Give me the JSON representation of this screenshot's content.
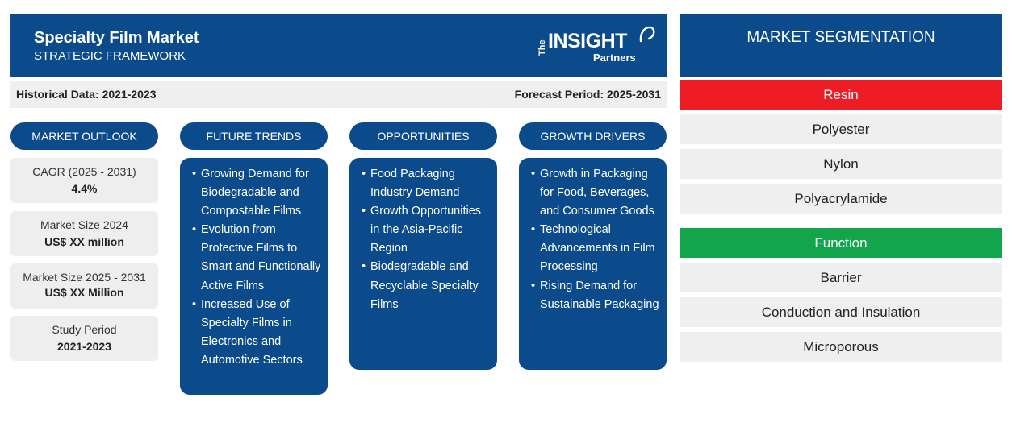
{
  "header": {
    "title": "Specialty Film Market",
    "subtitle": "STRATEGIC FRAMEWORK",
    "logo": {
      "the": "The",
      "insight": "INSIGHT",
      "partners": "Partners"
    }
  },
  "periods": {
    "historical": "Historical Data: 2021-2023",
    "forecast": "Forecast Period: 2025-2031"
  },
  "columns": {
    "outlook": "MARKET OUTLOOK",
    "trends": "FUTURE TRENDS",
    "opportunities": "OPPORTUNITIES",
    "drivers": "GROWTH DRIVERS"
  },
  "outlook": [
    {
      "label": "CAGR (2025 - 2031)",
      "value": "4.4%"
    },
    {
      "label": "Market Size 2024",
      "value": "US$ XX million"
    },
    {
      "label": "Market Size 2025 - 2031",
      "value": "US$ XX Million"
    },
    {
      "label": "Study Period",
      "value": "2021-2023"
    }
  ],
  "trends": [
    "Growing Demand for Biodegradable and Compostable Films",
    "Evolution from Protective Films to Smart and Functionally Active Films",
    "Increased Use of Specialty Films in Electronics and Automotive Sectors"
  ],
  "opportunities": [
    "Food Packaging Industry Demand",
    "Growth Opportunities in the Asia-Pacific Region",
    "Biodegradable and Recyclable Specialty Films"
  ],
  "drivers": [
    "Growth in Packaging for Food, Beverages, and Consumer Goods",
    "Technological Advancements in Film Processing",
    "Rising Demand for Sustainable Packaging"
  ],
  "segmentation": {
    "title": "MARKET SEGMENTATION",
    "resin": {
      "heading": "Resin",
      "color": "#ee1c25",
      "items": [
        "Polyester",
        "Nylon",
        "Polyacrylamide"
      ]
    },
    "function": {
      "heading": "Function",
      "color": "#13a54b",
      "items": [
        "Barrier",
        "Conduction and Insulation",
        "Microporous"
      ]
    }
  },
  "colors": {
    "primary": "#0b4a8b",
    "panel": "#efefef"
  }
}
